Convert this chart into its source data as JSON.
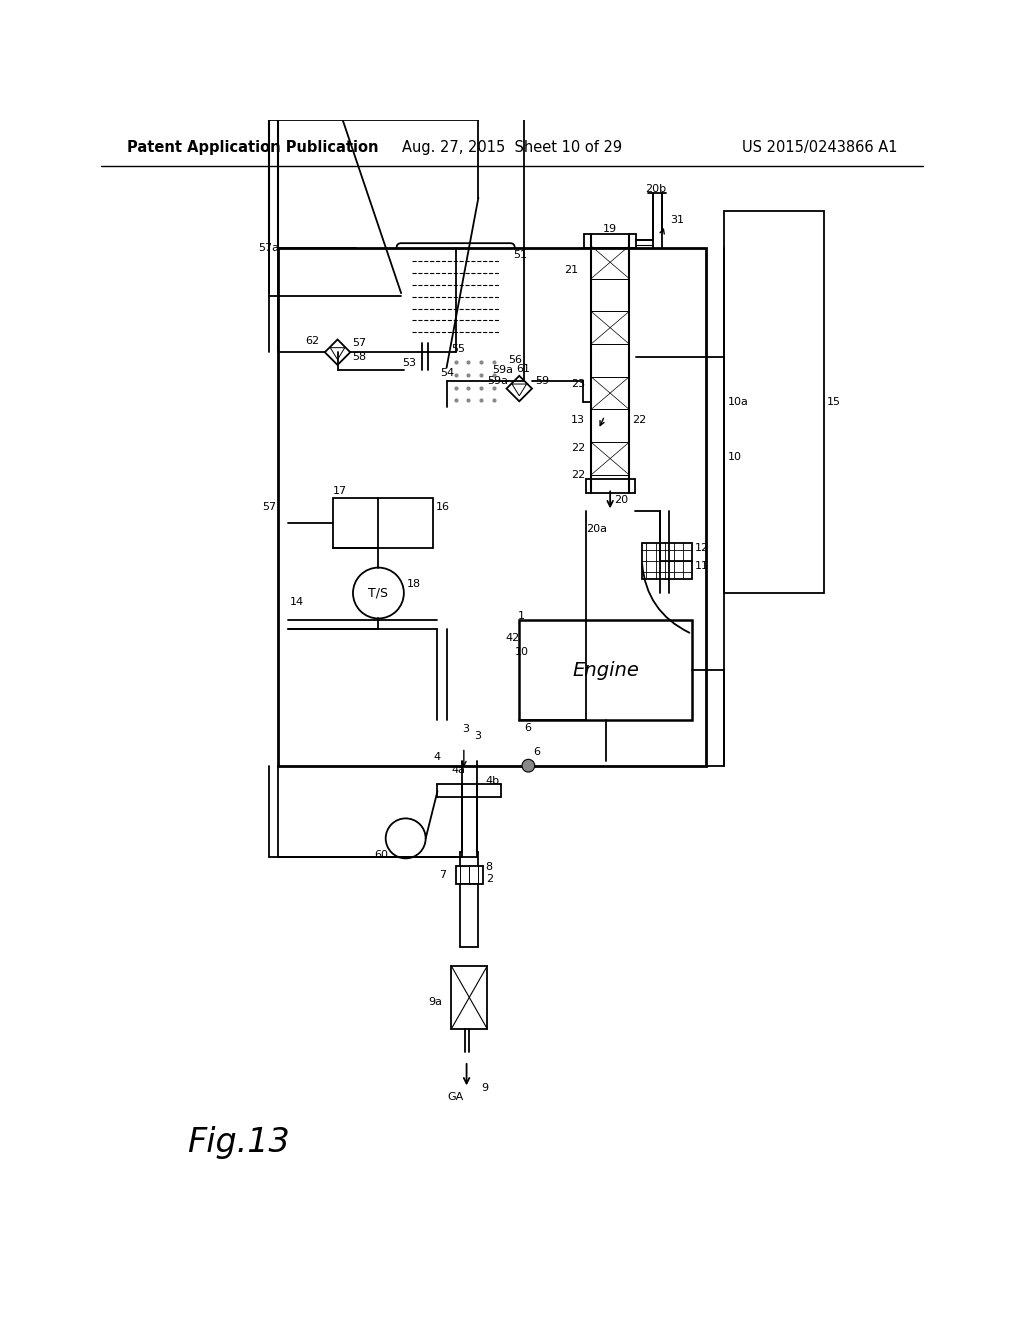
{
  "bg_color": "#ffffff",
  "lc": "#000000",
  "header_left": "Patent Application Publication",
  "header_mid": "Aug. 27, 2015  Sheet 10 of 29",
  "header_right": "US 2015/0243866 A1",
  "fig_label": "Fig.13",
  "header_fs": 10.5,
  "label_fs": 8.0
}
